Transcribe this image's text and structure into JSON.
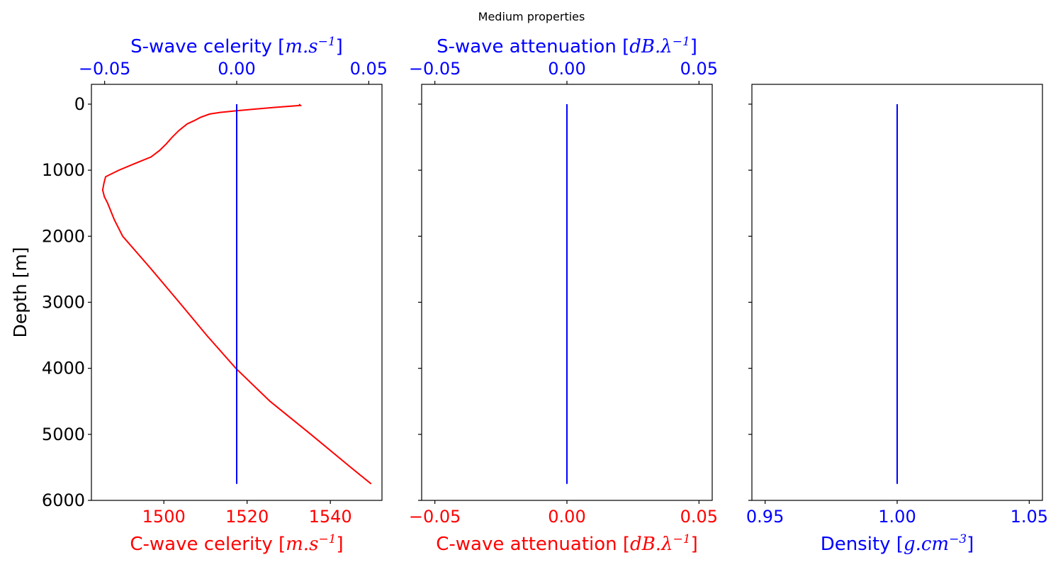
{
  "figure": {
    "suptitle": "Medium properties"
  },
  "colors": {
    "primary": "#ff0000",
    "secondary": "#0000ff",
    "axis": "#000000"
  },
  "chart_data": [
    {
      "type": "line",
      "name": "celerity",
      "y_label": "Depth [m]",
      "y_ticks": [
        "0",
        "1000",
        "2000",
        "3000",
        "4000",
        "5000",
        "6000"
      ],
      "y_tick_values": [
        0,
        1000,
        2000,
        3000,
        4000,
        5000,
        6000
      ],
      "ylim": [
        6000,
        -300
      ],
      "bottom_axis": {
        "label": "C-wave celerity [m.s⁻¹]",
        "color": "#ff0000",
        "xlim": [
          1482.6,
          1552.4
        ],
        "ticks": [
          "1500",
          "1520",
          "1540"
        ],
        "tick_values": [
          1500,
          1520,
          1540
        ]
      },
      "top_axis": {
        "label": "S-wave celerity [m.s⁻¹]",
        "color": "#0000ff",
        "xlim": [
          -0.055,
          0.055
        ],
        "ticks": [
          "−0.05",
          "0.00",
          "0.05"
        ],
        "tick_values": [
          -0.05,
          0.0,
          0.05
        ]
      },
      "series": [
        {
          "axis": "bottom",
          "color": "#ff0000",
          "depth": [
            0,
            20,
            50,
            75,
            100,
            125,
            150,
            200,
            250,
            300,
            400,
            500,
            600,
            700,
            800,
            900,
            1000,
            1100,
            1200,
            1300,
            1400,
            1500,
            1750,
            2000,
            2500,
            3000,
            3500,
            4000,
            4500,
            5000,
            5500,
            5750
          ],
          "value": [
            1532.5,
            1532.8,
            1526.4,
            1522.0,
            1517.5,
            1513.5,
            1511.0,
            1508.8,
            1507.3,
            1505.6,
            1503.6,
            1502.0,
            1500.6,
            1499.0,
            1496.9,
            1493.0,
            1489.2,
            1486.0,
            1485.6,
            1485.3,
            1485.7,
            1486.5,
            1488.1,
            1490.1,
            1497.0,
            1503.7,
            1510.3,
            1517.3,
            1525.5,
            1535.3,
            1544.9,
            1549.8
          ]
        },
        {
          "axis": "top",
          "color": "#0000ff",
          "depth": [
            0,
            5750
          ],
          "value": [
            0.0,
            0.0
          ]
        }
      ]
    },
    {
      "type": "line",
      "name": "attenuation",
      "y_label": "",
      "ylim": [
        6000,
        -300
      ],
      "y_tick_values": [
        0,
        1000,
        2000,
        3000,
        4000,
        5000,
        6000
      ],
      "bottom_axis": {
        "label": "C-wave attenuation [dB.λ⁻¹]",
        "color": "#ff0000",
        "xlim": [
          -0.055,
          0.055
        ],
        "ticks": [
          "−0.05",
          "0.00",
          "0.05"
        ],
        "tick_values": [
          -0.05,
          0.0,
          0.05
        ]
      },
      "top_axis": {
        "label": "S-wave attenuation [dB.λ⁻¹]",
        "color": "#0000ff",
        "xlim": [
          -0.055,
          0.055
        ],
        "ticks": [
          "−0.05",
          "0.00",
          "0.05"
        ],
        "tick_values": [
          -0.05,
          0.0,
          0.05
        ]
      },
      "series": [
        {
          "axis": "top",
          "color": "#0000ff",
          "depth": [
            0,
            5750
          ],
          "value": [
            0.0,
            0.0
          ]
        }
      ]
    },
    {
      "type": "line",
      "name": "density",
      "y_label": "",
      "ylim": [
        6000,
        -300
      ],
      "y_tick_values": [
        0,
        1000,
        2000,
        3000,
        4000,
        5000,
        6000
      ],
      "bottom_axis": {
        "label": "Density [g.cm⁻³]",
        "color": "#0000ff",
        "xlim": [
          0.945,
          1.055
        ],
        "ticks": [
          "0.95",
          "1.00",
          "1.05"
        ],
        "tick_values": [
          0.95,
          1.0,
          1.05
        ]
      },
      "series": [
        {
          "axis": "bottom",
          "color": "#0000ff",
          "depth": [
            0,
            5750
          ],
          "value": [
            1.0,
            1.0
          ]
        }
      ]
    }
  ]
}
